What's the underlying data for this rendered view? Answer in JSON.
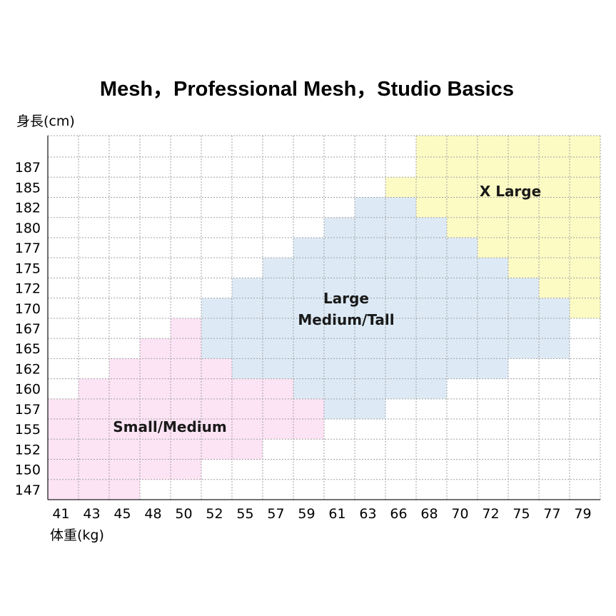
{
  "chart_data": {
    "type": "heatmap",
    "title": "Mesh，Professional Mesh，Studio Basics",
    "ylabel": "身長(cm)",
    "xlabel": "体重(kg)",
    "x_ticks": [
      "41",
      "43",
      "45",
      "48",
      "50",
      "52",
      "55",
      "57",
      "59",
      "61",
      "63",
      "66",
      "68",
      "70",
      "72",
      "75",
      "77",
      "79"
    ],
    "y_ticks": [
      "187",
      "185",
      "182",
      "180",
      "177",
      "175",
      "172",
      "170",
      "167",
      "165",
      "162",
      "160",
      "157",
      "155",
      "152",
      "150",
      "147"
    ],
    "colors": {
      "small_medium": "#fce4f4",
      "large_medium_tall": "#ddeaf6",
      "x_large": "#fdfbc4",
      "empty": "#ffffff",
      "grid": "#a0a0a0"
    },
    "zones": [
      {
        "key": "small_medium",
        "lines": [
          "Small/Medium"
        ]
      },
      {
        "key": "large_medium_tall",
        "lines": [
          "Large",
          "Medium/Tall"
        ]
      },
      {
        "key": "x_large",
        "lines": [
          "X Large"
        ]
      }
    ],
    "grid_rows": [
      "............XXXXXX",
      "...........XXXXXXX",
      "..........LLXXXXXX",
      ".........LLLLXXXXX",
      "........LLLLLLXXXX",
      ".......LLLLLLLLXXX",
      "......LLLLLLLLLLXX",
      ".....LLLLLLLLLLLLX",
      "....SLLLLLLLLLLLL.",
      "...SSLLLLLLLLLLLL.",
      "..SSSSLLLLLLLLL...",
      ".SSSSSSSLLLLL.....",
      "SSSSSSSSSLL.......",
      "SSSSSSSSS.........",
      "SSSSSSS...........",
      "SSSSS.............",
      "SSS..............."
    ]
  }
}
